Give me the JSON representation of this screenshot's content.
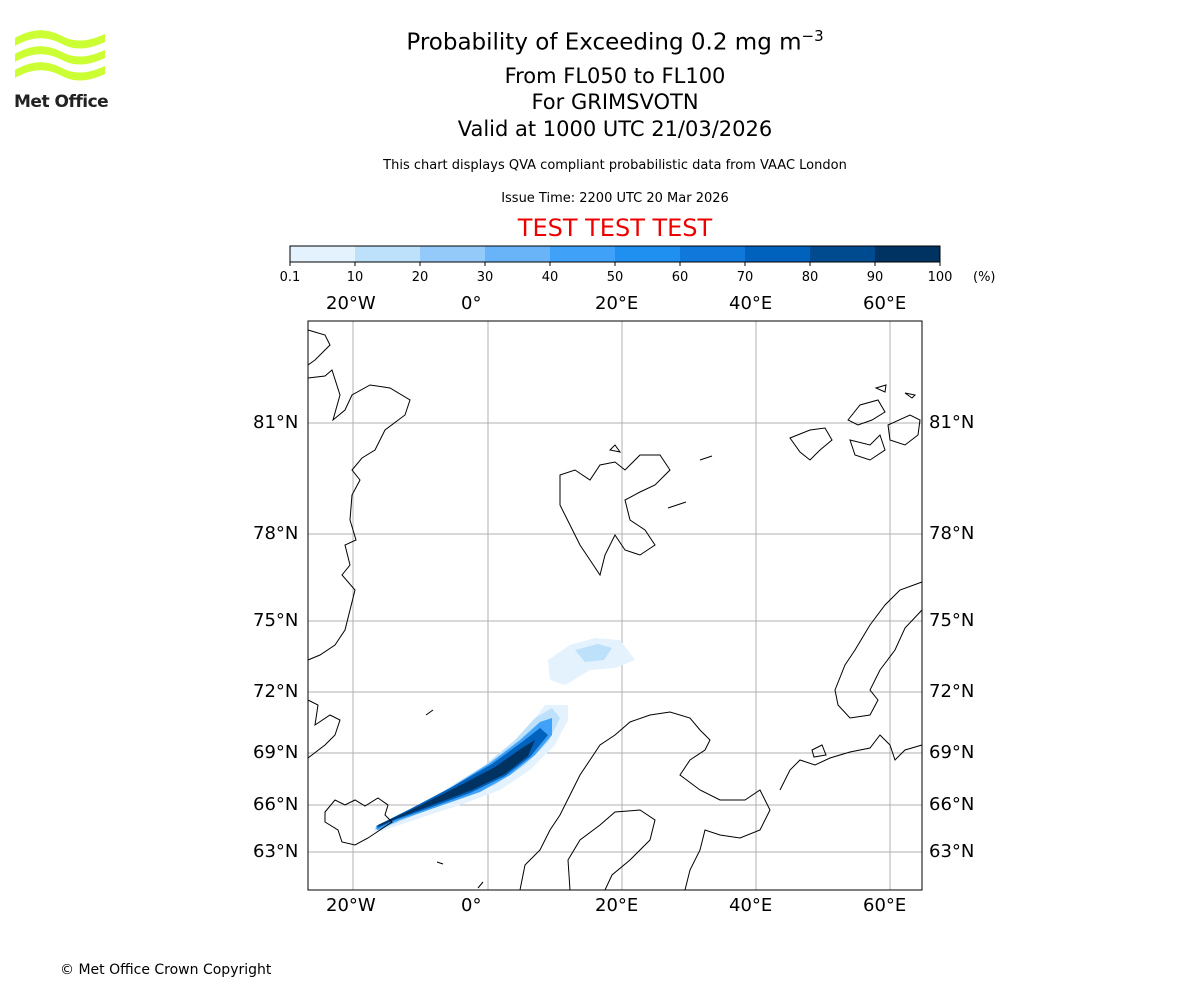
{
  "logo": {
    "text": "Met Office",
    "color": "#ccff33"
  },
  "header": {
    "title_prefix": "Probability of Exceeding 0.2 mg m",
    "title_exponent": "−3",
    "flight_levels": "From FL050 to FL100",
    "volcano": "For GRIMSVOTN",
    "valid_time": "Valid at 1000 UTC 21/03/2026",
    "subtitle": "This chart displays QVA compliant probabilistic data from VAAC London",
    "issue_time": "Issue Time: 2200 UTC 20 Mar 2026",
    "test_banner": "TEST TEST TEST"
  },
  "chart_data": {
    "type": "heatmap",
    "colorbar": {
      "unit": "(%)",
      "ticks": [
        "0.1",
        "10",
        "20",
        "30",
        "40",
        "50",
        "60",
        "70",
        "80",
        "90",
        "100"
      ],
      "colors": [
        "#e4f2fd",
        "#bde0fb",
        "#94cafa",
        "#69b4f8",
        "#3fa2f8",
        "#1f8ff0",
        "#0f78da",
        "#0062bd",
        "#004a8f",
        "#003262"
      ]
    },
    "x_ticks": [
      "20°W",
      "0°",
      "20°E",
      "40°E",
      "60°E"
    ],
    "y_ticks": [
      "81°N",
      "78°N",
      "75°N",
      "72°N",
      "69°N",
      "66°N",
      "63°N"
    ],
    "grid": true,
    "xlim": [
      "27°W",
      "65°E"
    ],
    "ylim": [
      "61°N",
      "84°N"
    ]
  },
  "footer": {
    "copyright": "© Met Office Crown Copyright"
  }
}
